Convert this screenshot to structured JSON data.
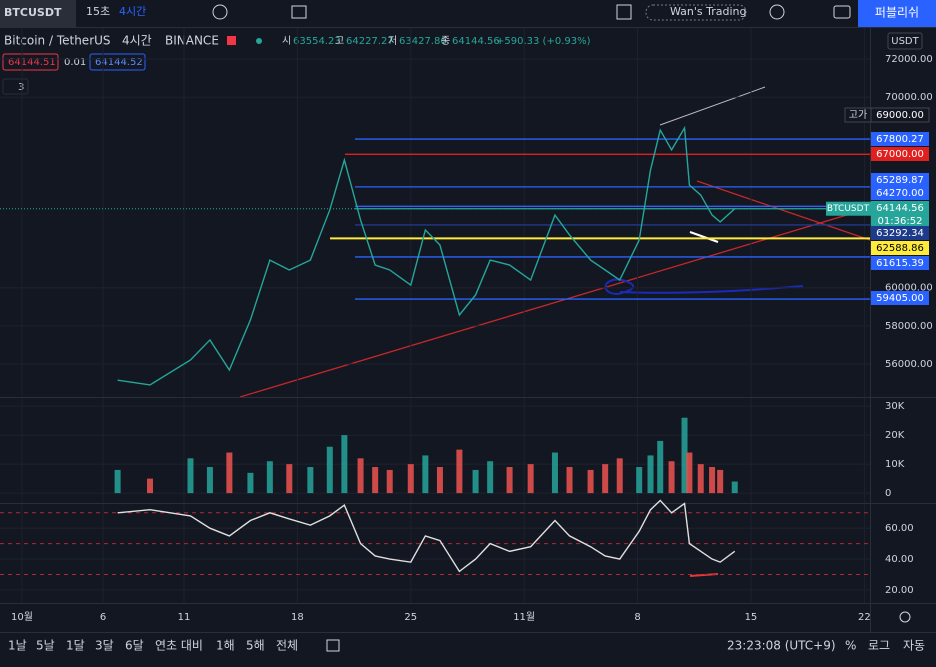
{
  "toolbar": {
    "symbol": "BTCUSDT",
    "intervals": [
      "15초",
      "4시간"
    ],
    "layout_name": "Wan's Trading",
    "publish": "퍼블리쉬"
  },
  "legend": {
    "title": "Bitcoin / TetherUS",
    "interval": "4시간",
    "exchange": "BINANCE",
    "ohlc": [
      {
        "label": "시",
        "value": "63554.23"
      },
      {
        "label": "고",
        "value": "64227.27"
      },
      {
        "label": "저",
        "value": "63427.86"
      },
      {
        "label": "종",
        "value": "64144.56"
      }
    ],
    "change": "+590.33 (+0.93%)",
    "bid": "64144.51",
    "spread": "0.01",
    "ask": "64144.52",
    "indicator_count": "3"
  },
  "price_axis": {
    "currency": "USDT",
    "countdown": "01:36:52",
    "high_label": "고가"
  },
  "chart_data": [
    {
      "type": "line",
      "x": [
        5.9,
        7.9,
        10.4,
        11.6,
        12.8,
        14.1,
        15.3,
        16.5,
        17.8,
        19.0,
        19.9,
        20.9,
        21.8,
        22.7,
        24.0,
        24.9,
        25.8,
        27.0,
        28.0,
        28.9,
        30.1,
        31.4,
        32.9,
        33.8,
        35.1,
        36.0,
        36.9,
        38.1,
        38.8,
        39.4,
        40.1,
        40.9,
        41.2,
        41.9,
        42.6,
        43.1,
        44.0
      ],
      "series": [
        {
          "name": "BTCUSDT",
          "color": "#26a69a",
          "values": [
            55150,
            54900,
            56210,
            57260,
            55680,
            58310,
            61450,
            60930,
            61450,
            64080,
            66700,
            63550,
            61190,
            60930,
            60140,
            63030,
            62240,
            58570,
            59620,
            61450,
            61190,
            60400,
            63810,
            62770,
            61450,
            60930,
            60400,
            62500,
            66180,
            68270,
            67230,
            68380,
            65390,
            64860,
            63810,
            63450,
            64144.56
          ]
        }
      ],
      "xlim": [
        -1.36,
        52.35
      ],
      "xticks": [
        {
          "value": 0,
          "label": "10월"
        },
        {
          "value": 5,
          "label": "6"
        },
        {
          "value": 10,
          "label": "11"
        },
        {
          "value": 17,
          "label": "18"
        },
        {
          "value": 24,
          "label": "25"
        },
        {
          "value": 31,
          "label": "11월"
        },
        {
          "value": 38,
          "label": "8"
        },
        {
          "value": 45,
          "label": "15"
        },
        {
          "value": 52,
          "label": "22"
        }
      ],
      "ylim": [
        54266,
        73626
      ],
      "yticks": [
        {
          "value": 72000,
          "label": "72000.00"
        },
        {
          "value": 70000,
          "label": "70000.00"
        },
        {
          "value": 60000,
          "label": "60000.00"
        },
        {
          "value": 58000,
          "label": "58000.00"
        },
        {
          "value": 56000,
          "label": "56000.00"
        }
      ],
      "levels": [
        {
          "value": 69000,
          "label": "69000.00",
          "color": "#131722"
        },
        {
          "value": 67800.27,
          "label": "67800.27",
          "color": "#2962ff"
        },
        {
          "value": 67000,
          "label": "67000.00",
          "color": "#e0201e"
        },
        {
          "value": 65289.87,
          "label": "65289.87",
          "color": "#2962ff"
        },
        {
          "value": 64270,
          "label": "64270.00",
          "color": "#2962ff"
        },
        {
          "value": 64144.56,
          "label": "64144.56",
          "color": "#26a69a"
        },
        {
          "value": 63292.34,
          "label": "63292.34",
          "color": "#1e3a8a"
        },
        {
          "value": 62588.86,
          "label": "62588.86",
          "color": "#ffeb3b"
        },
        {
          "value": 61615.39,
          "label": "61615.39",
          "color": "#2962ff"
        },
        {
          "value": 59405.0,
          "label": "59405.00",
          "color": "#2962ff"
        }
      ]
    },
    {
      "type": "bar",
      "x": [
        5.9,
        7.9,
        10.4,
        11.6,
        12.8,
        14.1,
        15.3,
        16.5,
        17.8,
        19.0,
        19.9,
        20.9,
        21.8,
        22.7,
        24.0,
        24.9,
        25.8,
        27.0,
        28.0,
        28.9,
        30.1,
        31.4,
        32.9,
        33.8,
        35.1,
        36.0,
        36.9,
        38.1,
        38.8,
        39.4,
        40.1,
        40.9,
        41.2,
        41.9,
        42.6,
        43.1,
        44.0
      ],
      "values": [
        8,
        5,
        12,
        9,
        14,
        7,
        11,
        10,
        9,
        16,
        20,
        12,
        9,
        8,
        10,
        13,
        9,
        15,
        8,
        11,
        9,
        10,
        14,
        9,
        8,
        10,
        12,
        9,
        13,
        18,
        11,
        26,
        14,
        10,
        9,
        8,
        4
      ],
      "color": "#26a69a",
      "down_color": "#ef5350",
      "xlim": [
        -1.36,
        52.35
      ],
      "ylim": [
        -3.4,
        32.8
      ],
      "yticks": [
        {
          "value": 30,
          "label": "30K"
        },
        {
          "value": 20,
          "label": "20K"
        },
        {
          "value": 10,
          "label": "10K"
        },
        0
      ]
    },
    {
      "type": "line",
      "x": [
        5.9,
        7.9,
        10.4,
        11.6,
        12.8,
        14.1,
        15.3,
        16.5,
        17.8,
        19.0,
        19.9,
        20.9,
        21.8,
        22.7,
        24.0,
        24.9,
        25.8,
        27.0,
        28.0,
        28.9,
        30.1,
        31.4,
        32.9,
        33.8,
        35.1,
        36.0,
        36.9,
        38.1,
        38.8,
        39.4,
        40.1,
        40.9,
        41.2,
        41.9,
        42.6,
        43.1,
        44.0
      ],
      "series": [
        {
          "name": "RSI",
          "color": "#e0e0e0",
          "values": [
            70,
            72,
            68,
            60,
            55,
            65,
            70,
            66,
            62,
            68,
            75,
            50,
            42,
            40,
            38,
            55,
            52,
            32,
            40,
            50,
            45,
            48,
            65,
            55,
            48,
            42,
            40,
            58,
            72,
            78,
            70,
            76,
            50,
            45,
            40,
            38,
            45
          ]
        }
      ],
      "xlim": [
        -1.36,
        52.35
      ],
      "ylim": [
        11.5,
        75.7
      ],
      "yticks": [
        {
          "value": 60,
          "label": "60.00"
        },
        {
          "value": 40,
          "label": "40.00"
        },
        {
          "value": 20,
          "label": "20.00"
        }
      ],
      "levels": [
        70,
        50,
        30
      ]
    }
  ],
  "bottom_bar": {
    "ranges": [
      "1날",
      "5날",
      "1달",
      "3달",
      "6달",
      "연초 대비",
      "1해",
      "5해",
      "전체"
    ],
    "clock": "23:23:08 (UTC+9)",
    "options": [
      "%",
      "로그",
      "자동"
    ]
  }
}
